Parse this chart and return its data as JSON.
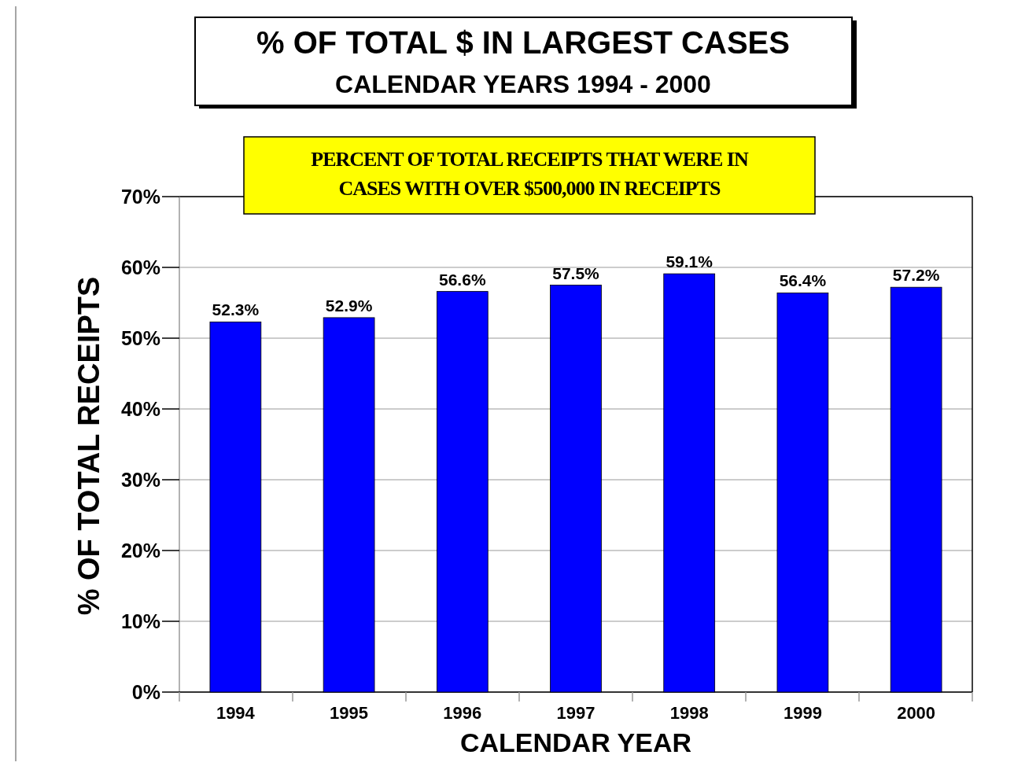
{
  "chart_data": {
    "type": "bar",
    "title": "% OF TOTAL $ IN LARGEST CASES",
    "subtitle": "CALENDAR YEARS 1994 - 2000",
    "xlabel": "CALENDAR YEAR",
    "ylabel": "% OF TOTAL RECEIPTS",
    "annotations": [
      "PERCENT OF TOTAL RECEIPTS THAT WERE IN CASES WITH OVER $500,000 IN RECEIPTS"
    ],
    "categories": [
      "1994",
      "1995",
      "1996",
      "1997",
      "1998",
      "1999",
      "2000"
    ],
    "values": [
      52.3,
      52.9,
      56.6,
      57.5,
      59.1,
      56.4,
      57.2
    ],
    "value_labels": [
      "52.3%",
      "52.9%",
      "56.6%",
      "57.5%",
      "59.1%",
      "56.4%",
      "57.2%"
    ],
    "color": "#0000ff",
    "ylim": [
      0,
      70
    ],
    "yticks": [
      {
        "value": 0,
        "label": "0%"
      },
      {
        "value": 10,
        "label": "10%"
      },
      {
        "value": 20,
        "label": "20%"
      },
      {
        "value": 30,
        "label": "30%"
      },
      {
        "value": 40,
        "label": "40%"
      },
      {
        "value": 50,
        "label": "50%"
      },
      {
        "value": 60,
        "label": "60%"
      },
      {
        "value": 70,
        "label": "70%"
      }
    ],
    "grid": "y"
  }
}
